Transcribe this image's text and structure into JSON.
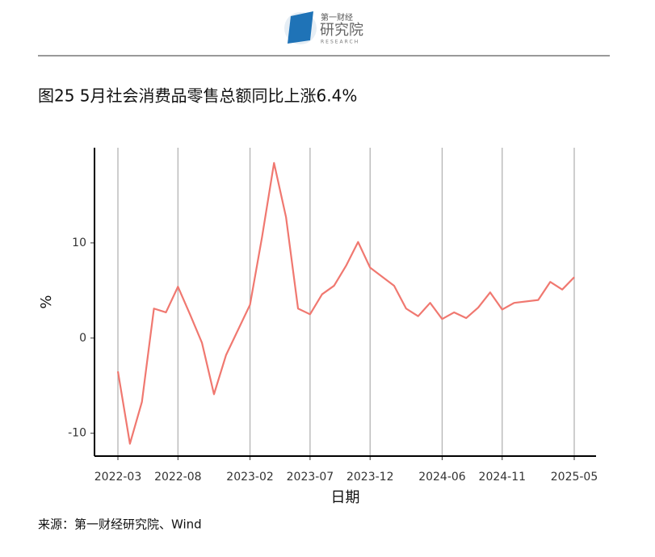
{
  "header": {
    "brand_top": "第一财经",
    "brand_main": "研究院",
    "brand_sub": "RESEARCH"
  },
  "chart_data": {
    "type": "line",
    "title": "图25 5月社会消费品零售总额同比上涨6.4%",
    "x_label": "日期",
    "y_label": "%",
    "x": [
      "2022-03",
      "2022-04",
      "2022-05",
      "2022-06",
      "2022-07",
      "2022-08",
      "2022-09",
      "2022-10",
      "2022-11",
      "2022-12",
      "2023-02",
      "2023-03",
      "2023-04",
      "2023-05",
      "2023-06",
      "2023-07",
      "2023-08",
      "2023-09",
      "2023-10",
      "2023-11",
      "2023-12",
      "2024-02",
      "2024-03",
      "2024-04",
      "2024-05",
      "2024-06",
      "2024-07",
      "2024-08",
      "2024-09",
      "2024-10",
      "2024-11",
      "2024-12",
      "2025-02",
      "2025-03",
      "2025-04",
      "2025-05"
    ],
    "series": [
      {
        "name": "社会消费品零售总额同比",
        "color": "#f07870",
        "values": [
          -3.5,
          -11.1,
          -6.7,
          3.1,
          2.7,
          5.4,
          2.5,
          -0.5,
          -5.9,
          -1.8,
          3.5,
          10.6,
          18.4,
          12.7,
          3.1,
          2.5,
          4.6,
          5.5,
          7.6,
          10.1,
          7.4,
          5.5,
          3.1,
          2.3,
          3.7,
          2.0,
          2.7,
          2.1,
          3.2,
          4.8,
          3.0,
          3.7,
          4.0,
          5.9,
          5.1,
          6.4
        ]
      }
    ],
    "xlim": [
      "2022-03",
      "2025-05"
    ],
    "xticks": [
      "2022-03",
      "2022-08",
      "2023-02",
      "2023-07",
      "2023-12",
      "2024-06",
      "2024-11",
      "2025-05"
    ],
    "ylim": [
      -12.4,
      20
    ],
    "yticks": [
      -10,
      0,
      10
    ],
    "grid": "x"
  },
  "footer": {
    "source": "来源：第一财经研究院、Wind"
  }
}
